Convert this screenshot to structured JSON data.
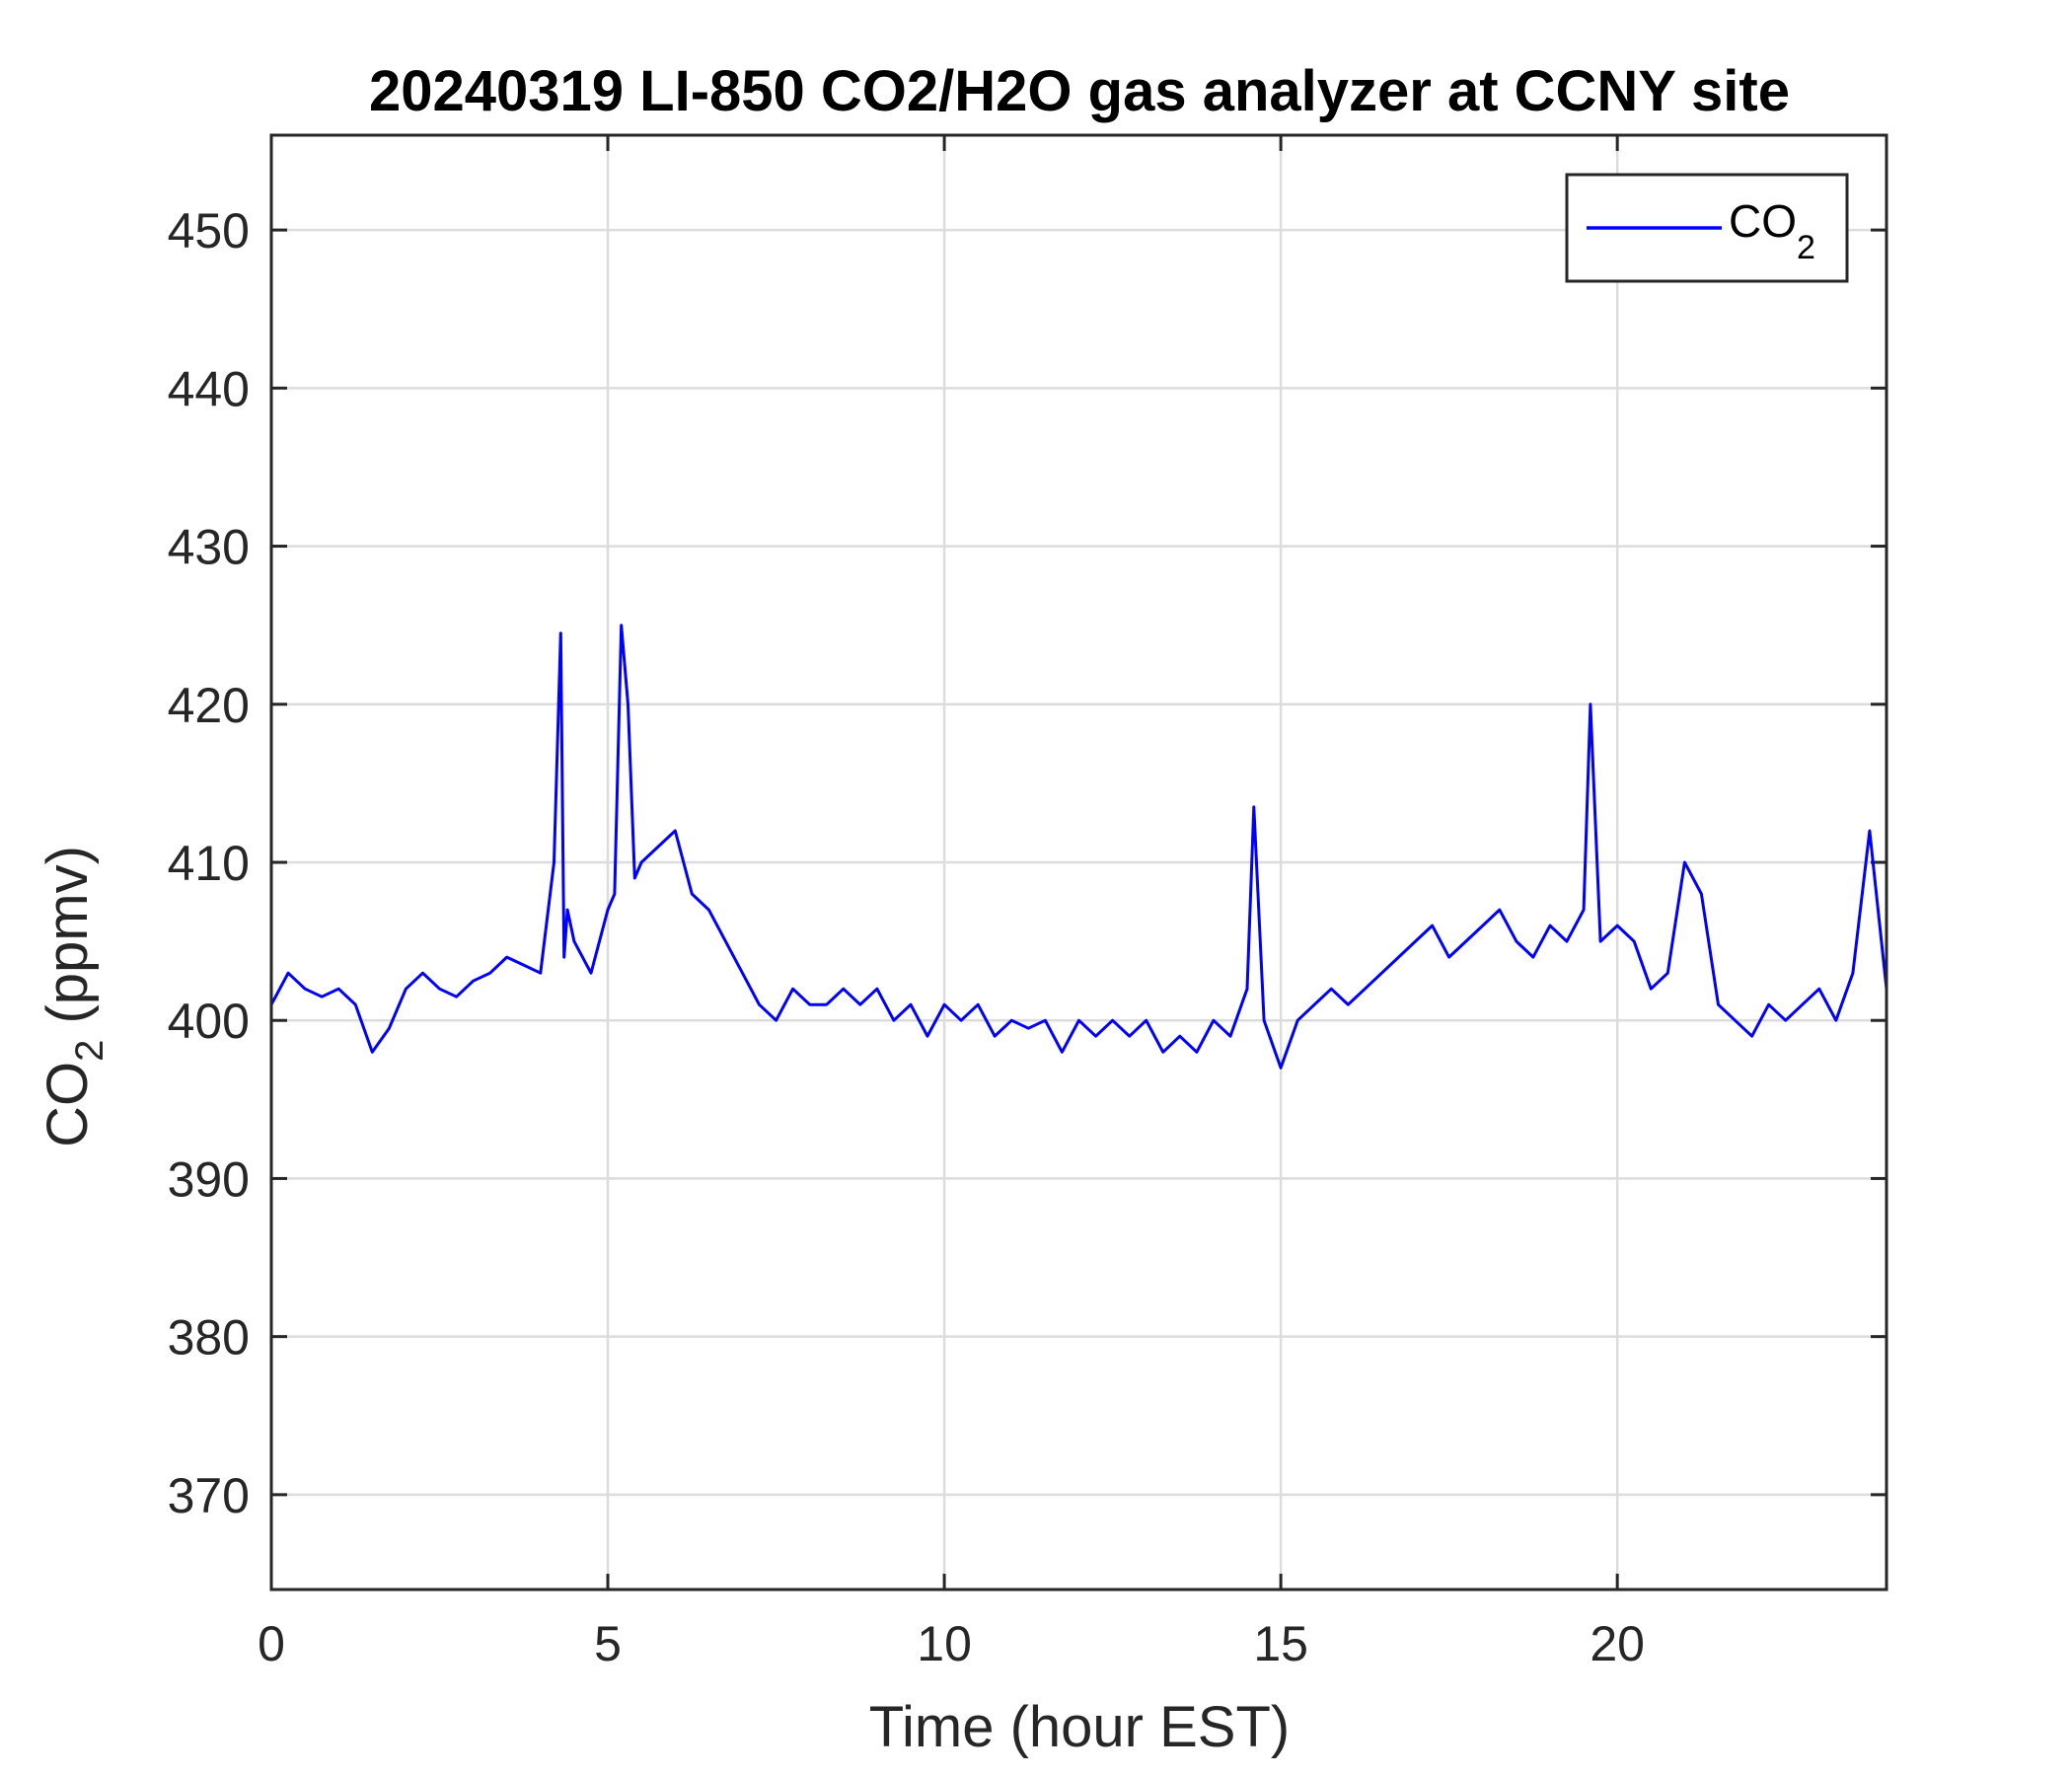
{
  "chart_data": {
    "type": "line",
    "title": "20240319 LI-850 CO2/H2O gas analyzer at CCNY site",
    "xlabel": "Time (hour EST)",
    "ylabel_main": "CO",
    "ylabel_sub": "2",
    "ylabel_rest": " (ppmv)",
    "xlim": [
      0,
      24
    ],
    "ylim": [
      364,
      456
    ],
    "xticks": [
      0,
      5,
      10,
      15,
      20
    ],
    "yticks": [
      370,
      380,
      390,
      400,
      410,
      420,
      430,
      440,
      450
    ],
    "grid": true,
    "legend_position": "top-right",
    "series": [
      {
        "name": "CO",
        "name_sub": "2",
        "color": "#0000ff",
        "x": [
          0,
          0.25,
          0.5,
          0.75,
          1.0,
          1.25,
          1.5,
          1.75,
          2.0,
          2.25,
          2.5,
          2.75,
          3.0,
          3.25,
          3.5,
          3.75,
          4.0,
          4.2,
          4.3,
          4.35,
          4.4,
          4.5,
          4.75,
          5.0,
          5.1,
          5.2,
          5.3,
          5.4,
          5.5,
          5.75,
          6.0,
          6.25,
          6.5,
          6.75,
          7.0,
          7.25,
          7.5,
          7.75,
          8.0,
          8.25,
          8.5,
          8.75,
          9.0,
          9.25,
          9.5,
          9.75,
          10.0,
          10.25,
          10.5,
          10.75,
          11.0,
          11.25,
          11.5,
          11.75,
          12.0,
          12.25,
          12.5,
          12.75,
          13.0,
          13.25,
          13.5,
          13.75,
          14.0,
          14.25,
          14.5,
          14.6,
          14.75,
          15.0,
          15.25,
          15.5,
          15.75,
          16.0,
          16.25,
          16.5,
          16.75,
          17.0,
          17.25,
          17.5,
          17.75,
          18.0,
          18.25,
          18.5,
          18.75,
          19.0,
          19.25,
          19.5,
          19.6,
          19.75,
          20.0,
          20.25,
          20.5,
          20.75,
          21.0,
          21.25,
          21.5,
          21.75,
          22.0,
          22.25,
          22.5,
          22.75,
          23.0,
          23.25,
          23.5,
          23.75,
          24.0
        ],
        "values": [
          401,
          403,
          402,
          401.5,
          402,
          401,
          398,
          399.5,
          402,
          403,
          402,
          401.5,
          402.5,
          403,
          404,
          403.5,
          403,
          410,
          424.5,
          404,
          407,
          405,
          403,
          407,
          408,
          425,
          420,
          409,
          410,
          411,
          412,
          408,
          407,
          405,
          403,
          401,
          400,
          402,
          401,
          401,
          402,
          401,
          402,
          400,
          401,
          399,
          401,
          400,
          401,
          399,
          400,
          399.5,
          400,
          398,
          400,
          399,
          400,
          399,
          400,
          398,
          399,
          398,
          400,
          399,
          402,
          413.5,
          400,
          397,
          400,
          401,
          402,
          401,
          402,
          403,
          404,
          405,
          406,
          404,
          405,
          406,
          407,
          405,
          404,
          406,
          405,
          407,
          420,
          405,
          406,
          405,
          402,
          403,
          410,
          408,
          401,
          400,
          399,
          401,
          400,
          401,
          402,
          400,
          403,
          412,
          402
        ]
      }
    ]
  }
}
